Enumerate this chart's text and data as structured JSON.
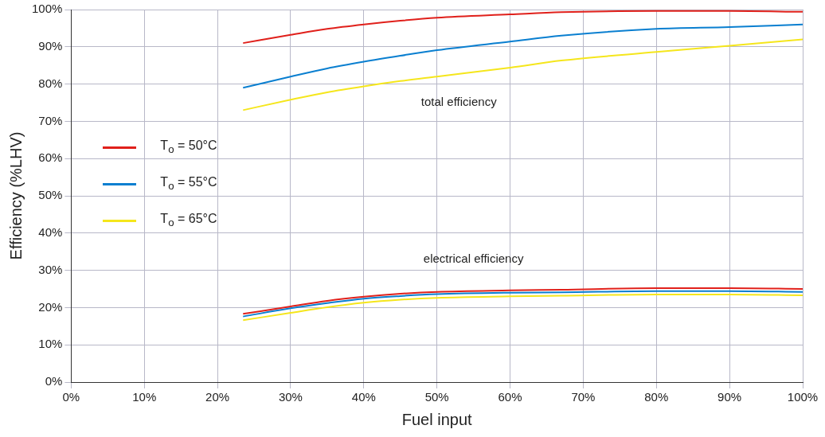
{
  "chart_data": {
    "type": "line",
    "xlabel": "Fuel input",
    "ylabel": "Efficiency (%LHV)",
    "xlim": [
      0,
      100
    ],
    "ylim": [
      0,
      100
    ],
    "xticks": [
      {
        "value": 0,
        "label": "0%"
      },
      {
        "value": 10,
        "label": "10%"
      },
      {
        "value": 20,
        "label": "20%"
      },
      {
        "value": 30,
        "label": "30%"
      },
      {
        "value": 40,
        "label": "40%"
      },
      {
        "value": 50,
        "label": "50%"
      },
      {
        "value": 60,
        "label": "60%"
      },
      {
        "value": 70,
        "label": "70%"
      },
      {
        "value": 80,
        "label": "80%"
      },
      {
        "value": 90,
        "label": "90%"
      },
      {
        "value": 100,
        "label": "100%"
      }
    ],
    "yticks": [
      {
        "value": 0,
        "label": "0%"
      },
      {
        "value": 10,
        "label": "10%"
      },
      {
        "value": 20,
        "label": "20%"
      },
      {
        "value": 30,
        "label": "30%"
      },
      {
        "value": 40,
        "label": "40%"
      },
      {
        "value": 50,
        "label": "50%"
      },
      {
        "value": 60,
        "label": "60%"
      },
      {
        "value": 70,
        "label": "70%"
      },
      {
        "value": 80,
        "label": "80%"
      },
      {
        "value": 90,
        "label": "90%"
      },
      {
        "value": 100,
        "label": "100%"
      }
    ],
    "x": [
      23.5,
      30,
      35,
      40,
      45,
      50,
      60,
      67,
      80,
      90,
      100
    ],
    "series": [
      {
        "name": "T$_{o}$ = 50°C",
        "color": "#e0201b",
        "values": [
          91,
          93.2,
          94.8,
          96,
          97,
          97.8,
          98.7,
          99.3,
          99.6,
          99.6,
          99.4
        ]
      },
      {
        "name": "T$_{o}$ = 55°C",
        "color": "#0a7fd0",
        "values": [
          79,
          82,
          84.2,
          86,
          87.6,
          89.1,
          91.4,
          93,
          94.8,
          95.3,
          96
        ]
      },
      {
        "name": "T$_{o}$ = 65°C",
        "color": "#f5e61c",
        "values": [
          73,
          75.8,
          77.8,
          79.4,
          80.8,
          82,
          84.4,
          86.3,
          88.6,
          90.3,
          92
        ]
      },
      {
        "color": "#e0201b",
        "values": [
          18.3,
          20.3,
          21.8,
          22.9,
          23.7,
          24.2,
          24.6,
          24.8,
          25.2,
          25.2,
          25
        ]
      },
      {
        "color": "#0a7fd0",
        "values": [
          17.6,
          19.8,
          21.2,
          22.4,
          23.1,
          23.6,
          24,
          24.1,
          24.4,
          24.4,
          24.2
        ]
      },
      {
        "color": "#f5e61c",
        "values": [
          16.6,
          18.6,
          20.1,
          21.3,
          22.1,
          22.6,
          23,
          23.2,
          23.5,
          23.5,
          23.3
        ]
      }
    ],
    "annotations": [
      "total efficiency",
      "electrical efficiency"
    ],
    "grid": true,
    "legend": "left",
    "marker": "none",
    "line_style": "solid"
  }
}
